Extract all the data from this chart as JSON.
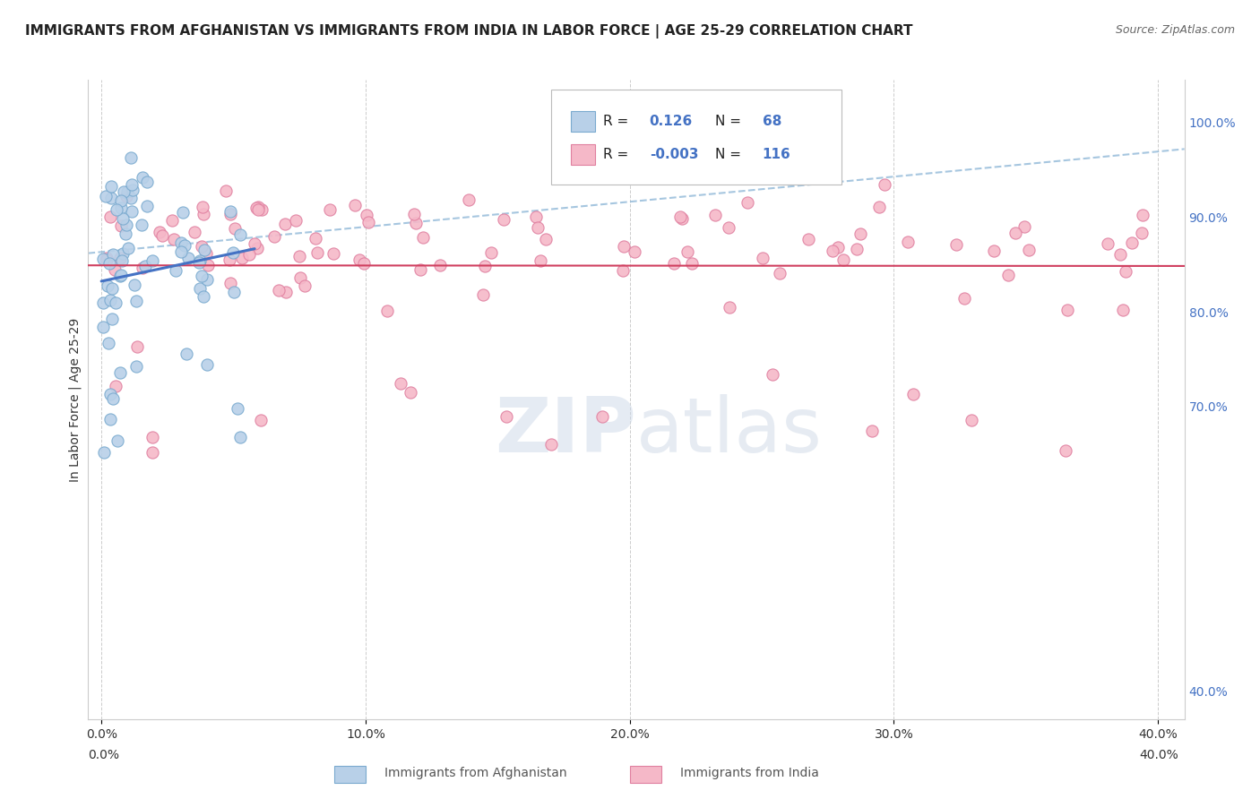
{
  "title": "IMMIGRANTS FROM AFGHANISTAN VS IMMIGRANTS FROM INDIA IN LABOR FORCE | AGE 25-29 CORRELATION CHART",
  "source": "Source: ZipAtlas.com",
  "ylabel": "In Labor Force | Age 25-29",
  "xlim": [
    -0.005,
    0.41
  ],
  "ylim": [
    0.37,
    1.045
  ],
  "xtick_vals": [
    0.0,
    0.1,
    0.2,
    0.3,
    0.4
  ],
  "xtick_labels": [
    "0.0%",
    "10.0%",
    "20.0%",
    "30.0%",
    "40.0%"
  ],
  "ytick_vals": [
    0.4,
    0.7,
    0.8,
    0.9,
    1.0
  ],
  "ytick_labels": [
    "40.0%",
    "70.0%",
    "80.0%",
    "90.0%",
    "100.0%"
  ],
  "color_afghanistan_fill": "#b8d0e8",
  "color_afghanistan_edge": "#7aaacf",
  "color_india_fill": "#f5b8c8",
  "color_india_edge": "#e080a0",
  "color_line_afghanistan": "#4472c4",
  "color_line_india": "#d04060",
  "color_dashed": "#90b8d8",
  "color_right_axis": "#4472c4",
  "watermark": "ZIPatlas",
  "legend_r1_black": "R = ",
  "legend_r1_blue": "0.126",
  "legend_n1_black": "N = ",
  "legend_n1_blue": "68",
  "legend_r2_black": "R = ",
  "legend_r2_blue": "-0.003",
  "legend_n2_black": "N = ",
  "legend_n2_blue": "116",
  "bottom_label1": "Immigrants from Afghanistan",
  "bottom_label2": "Immigrants from India"
}
